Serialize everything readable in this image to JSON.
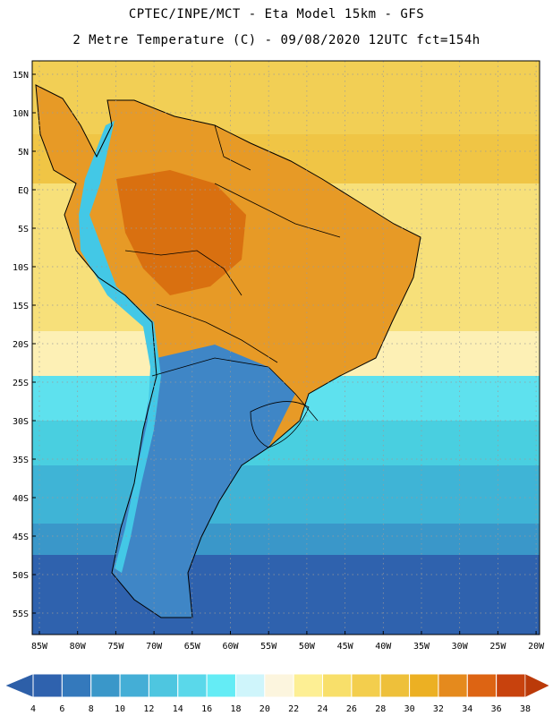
{
  "title": {
    "line1": "CPTEC/INPE/MCT -  Eta Model 15km - GFS",
    "line2": "2 Metre Temperature (C) - 09/08/2020 12UTC fct=154h"
  },
  "map": {
    "lat_ticks": [
      "15N",
      "10N",
      "5N",
      "EQ",
      "5S",
      "10S",
      "15S",
      "20S",
      "25S",
      "30S",
      "35S",
      "40S",
      "45S",
      "50S",
      "55S"
    ],
    "lon_ticks": [
      "85W",
      "80W",
      "75W",
      "70W",
      "65W",
      "60W",
      "55W",
      "50W",
      "45W",
      "40W",
      "35W",
      "30W",
      "25W",
      "20W"
    ],
    "bands": [
      {
        "color": "#f2cf55"
      },
      {
        "color": "#f0c545"
      },
      {
        "color": "#f7e07a"
      },
      {
        "color": "#fdf0b5"
      },
      {
        "color": "#5ee1ee"
      },
      {
        "color": "#49cfe0"
      },
      {
        "color": "#3fb4d6"
      },
      {
        "color": "#3a97c9"
      },
      {
        "color": "#2f62ae"
      }
    ],
    "land_color": "#e79a26",
    "land_hot_color": "#d97010",
    "andes_color": "#43c8e6",
    "south_land_color": "#3f86c6"
  },
  "colorbar": {
    "labels": [
      "4",
      "6",
      "8",
      "10",
      "12",
      "14",
      "16",
      "18",
      "20",
      "22",
      "24",
      "26",
      "28",
      "30",
      "32",
      "34",
      "36",
      "38"
    ],
    "colors": [
      "#2f62ae",
      "#3479bc",
      "#3a97c9",
      "#44aed6",
      "#4ec6e0",
      "#5ad8ea",
      "#64ecf5",
      "#cff5fb",
      "#fcf5de",
      "#fdef94",
      "#f8df6a",
      "#f3ce4d",
      "#eec03a",
      "#ecb023",
      "#e58a1d",
      "#dd6413",
      "#c8420d"
    ],
    "left_arrow_color": "#2d5fa8",
    "right_arrow_color": "#bb3a09"
  }
}
